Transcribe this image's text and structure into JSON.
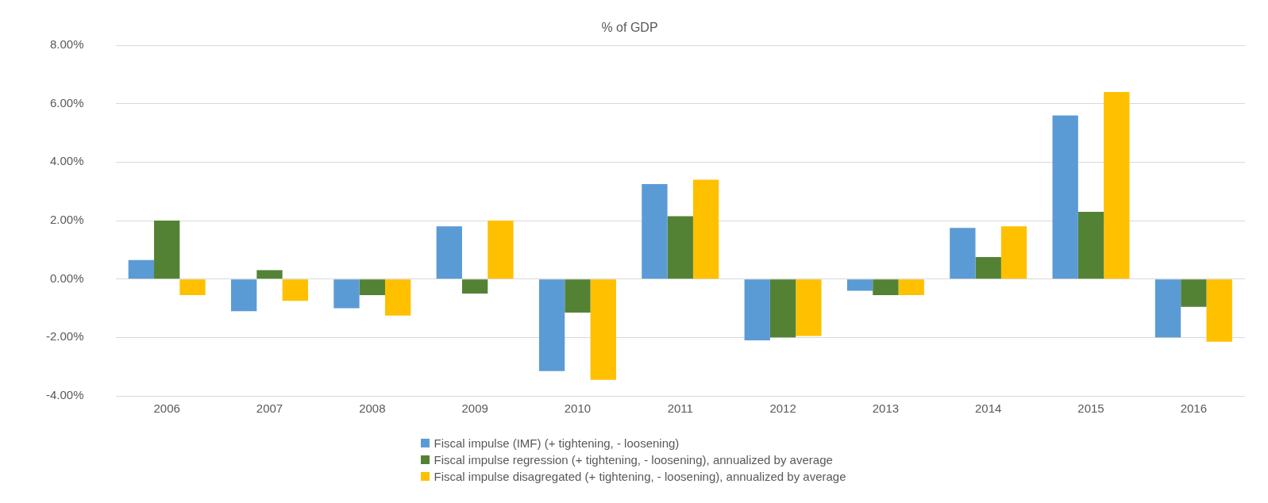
{
  "chart_data": {
    "type": "bar",
    "title": "% of GDP",
    "categories": [
      "2006",
      "2007",
      "2008",
      "2009",
      "2010",
      "2011",
      "2012",
      "2013",
      "2014",
      "2015",
      "2016"
    ],
    "series": [
      {
        "name": "Fiscal impulse (IMF) (+ tightening, - loosening)",
        "color": "#5b9bd5",
        "values": [
          0.65,
          -1.1,
          -1.0,
          1.8,
          -3.15,
          3.25,
          -2.1,
          -0.4,
          1.75,
          5.6,
          -2.0
        ]
      },
      {
        "name": "Fiscal impulse regression  (+ tightening, - loosening), annualized by average",
        "color": "#548235",
        "values": [
          2.0,
          0.3,
          -0.55,
          -0.5,
          -1.15,
          2.15,
          -2.0,
          -0.55,
          0.75,
          2.3,
          -0.95
        ]
      },
      {
        "name": "Fiscal impulse disagregated (+ tightening, - loosening), annualized by average",
        "color": "#ffc000",
        "values": [
          -0.55,
          -0.75,
          -1.25,
          2.0,
          -3.45,
          3.4,
          -1.95,
          -0.55,
          1.8,
          6.4,
          -2.15
        ]
      }
    ],
    "ylim": [
      -4,
      8
    ],
    "yticks": [
      {
        "value": -4,
        "label": "-4.00%"
      },
      {
        "value": -2,
        "label": "-2.00%"
      },
      {
        "value": 0,
        "label": "0.00%"
      },
      {
        "value": 2,
        "label": "2.00%"
      },
      {
        "value": 4,
        "label": "4.00%"
      },
      {
        "value": 6,
        "label": "6.00%"
      },
      {
        "value": 8,
        "label": "8.00%"
      }
    ],
    "grid": "y",
    "legend": "bottom"
  }
}
